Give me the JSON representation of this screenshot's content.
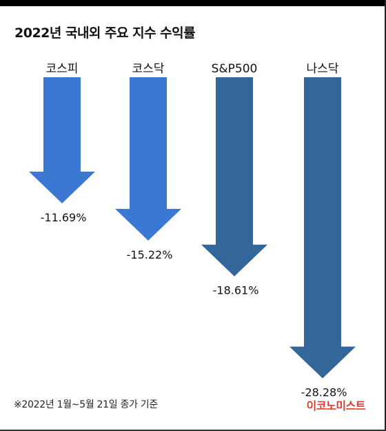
{
  "title": "2022년 국내외 주요 지수 수익률",
  "source_note": "※2022년 1월~5월 21일 종가 기준",
  "brand": "이코노미스트",
  "colors": {
    "domestic": "#3a78d4",
    "foreign": "#336699",
    "brand": "#e03a2f",
    "text": "#111111"
  },
  "chart_data": {
    "type": "bar",
    "title": "2022년 국내외 주요 지수 수익률",
    "categories": [
      "코스피",
      "코스닥",
      "S&P500",
      "나스닥"
    ],
    "values": [
      -11.69,
      -15.22,
      -18.61,
      -28.28
    ],
    "value_labels": [
      "-11.69%",
      "-15.22%",
      "-18.61%",
      "-28.28%"
    ],
    "bar_colors": [
      "#3a78d4",
      "#3a78d4",
      "#336699",
      "#336699"
    ],
    "marker": "down-arrow",
    "unit": "%"
  }
}
